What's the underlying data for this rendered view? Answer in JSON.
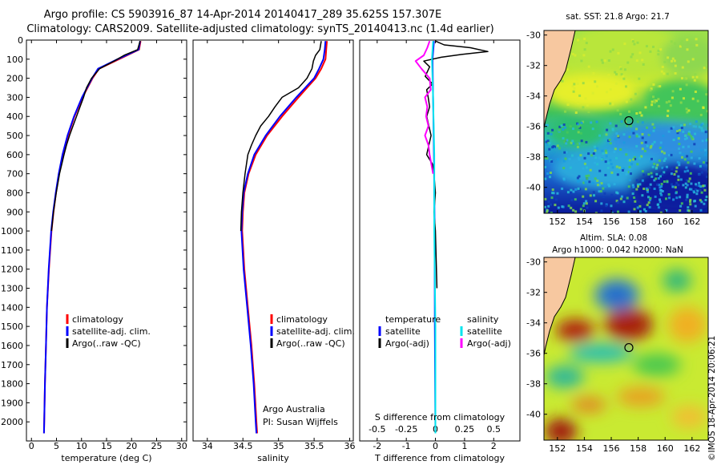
{
  "header": {
    "title_line1": "Argo profile: CS 5903916_87 14-Apr-2014 20140417_289 35.625S 157.307E",
    "title_line2": "Climatology: CARS2009. Satellite-adjusted climatology: synTS_20140413.nc (1.4d earlier)"
  },
  "colors": {
    "climatology": "#ff0000",
    "satellite": "#0000ff",
    "argo": "#000000",
    "salinity_satellite": "#00e5ee",
    "salinity_argo": "#ff00ff",
    "land": "#f7c8a0"
  },
  "chart_data": [
    {
      "id": "temperature",
      "type": "line",
      "xlabel": "temperature (deg C)",
      "ylabel": "",
      "xlim": [
        -1,
        31
      ],
      "ylim": [
        2100,
        0
      ],
      "xticks": [
        0,
        5,
        10,
        15,
        20,
        25,
        30
      ],
      "xtick_labels": [
        "0",
        "5",
        "10",
        "15",
        "20",
        "25",
        "30"
      ],
      "yticks": [
        0,
        100,
        200,
        300,
        400,
        500,
        600,
        700,
        800,
        900,
        1000,
        1100,
        1200,
        1300,
        1400,
        1500,
        1600,
        1700,
        1800,
        1900,
        2000
      ],
      "ytick_labels": [
        "0",
        "100",
        "200",
        "300",
        "400",
        "500",
        "600",
        "700",
        "800",
        "900",
        "1000",
        "1100",
        "1200",
        "1300",
        "1400",
        "1500",
        "1600",
        "1700",
        "1800",
        "1900",
        "2000"
      ],
      "legend": [
        "climatology",
        "satellite-adj. clim.",
        "Argo(..raw -QC)"
      ],
      "series": [
        {
          "name": "climatology",
          "depth": [
            5,
            50,
            100,
            150,
            200,
            300,
            400,
            500,
            600,
            700,
            800,
            900,
            1000,
            1200,
            1400,
            1600,
            1800,
            2000,
            2060
          ],
          "values": [
            21.8,
            21.5,
            17.5,
            13.5,
            12.2,
            10.2,
            8.6,
            7.3,
            6.3,
            5.5,
            4.9,
            4.4,
            4.0,
            3.5,
            3.1,
            2.9,
            2.7,
            2.55,
            2.5
          ]
        },
        {
          "name": "satellite-adj. clim.",
          "depth": [
            5,
            50,
            100,
            150,
            200,
            300,
            400,
            500,
            600,
            700,
            800,
            900,
            1000,
            1200,
            1400,
            1600,
            1800,
            2000,
            2060
          ],
          "values": [
            21.7,
            21.4,
            17.2,
            13.3,
            12.1,
            10.1,
            8.5,
            7.2,
            6.2,
            5.45,
            4.85,
            4.35,
            3.95,
            3.45,
            3.1,
            2.9,
            2.7,
            2.55,
            2.5
          ]
        },
        {
          "name": "Argo(..raw -QC)",
          "depth": [
            5,
            50,
            80,
            110,
            150,
            200,
            250,
            300,
            350,
            400,
            450,
            500,
            550,
            600,
            700,
            800,
            900,
            1000
          ],
          "values": [
            21.7,
            21.2,
            18.5,
            16.5,
            13.6,
            12.0,
            11.0,
            10.4,
            9.7,
            9.0,
            8.3,
            7.6,
            7.0,
            6.5,
            5.6,
            4.95,
            4.4,
            4.0
          ]
        }
      ]
    },
    {
      "id": "salinity",
      "type": "line",
      "xlabel": "salinity",
      "ylabel": "",
      "xlim": [
        33.8,
        36.05
      ],
      "ylim": [
        2100,
        0
      ],
      "xticks": [
        34,
        34.5,
        35,
        35.5,
        36
      ],
      "xtick_labels": [
        "34",
        "34.5",
        "35",
        "35.5",
        "36"
      ],
      "legend": [
        "climatology",
        "satellite-adj. clim.",
        "Argo(..raw -QC)"
      ],
      "annotation_line1": "Argo Australia",
      "annotation_line2": "PI: Susan Wijffels",
      "series": [
        {
          "name": "climatology",
          "depth": [
            5,
            50,
            100,
            150,
            200,
            300,
            400,
            500,
            600,
            700,
            800,
            900,
            1000,
            1200,
            1400,
            1600,
            1800,
            2000,
            2060
          ],
          "values": [
            35.68,
            35.67,
            35.66,
            35.6,
            35.52,
            35.28,
            35.05,
            34.84,
            34.68,
            34.58,
            34.52,
            34.5,
            34.49,
            34.52,
            34.57,
            34.62,
            34.66,
            34.69,
            34.7
          ]
        },
        {
          "name": "satellite-adj. clim.",
          "depth": [
            5,
            50,
            100,
            150,
            200,
            300,
            400,
            500,
            600,
            700,
            800,
            900,
            1000,
            1200,
            1400,
            1600,
            1800,
            2000,
            2060
          ],
          "values": [
            35.66,
            35.65,
            35.63,
            35.57,
            35.5,
            35.25,
            35.02,
            34.82,
            34.66,
            34.57,
            34.51,
            34.49,
            34.48,
            34.51,
            34.56,
            34.61,
            34.65,
            34.68,
            34.69
          ]
        },
        {
          "name": "Argo(..raw -QC)",
          "depth": [
            5,
            50,
            80,
            110,
            150,
            200,
            250,
            300,
            350,
            400,
            450,
            500,
            550,
            600,
            700,
            800,
            900,
            1000
          ],
          "values": [
            35.6,
            35.58,
            35.52,
            35.49,
            35.47,
            35.4,
            35.28,
            35.05,
            34.95,
            34.86,
            34.75,
            34.68,
            34.62,
            34.57,
            34.53,
            34.5,
            34.48,
            34.47
          ]
        }
      ]
    },
    {
      "id": "difference",
      "type": "line",
      "xlabel": "T difference from climatology",
      "top_label": "S difference from climatology",
      "xlim": [
        -2.6,
        2.9
      ],
      "ylim": [
        2100,
        0
      ],
      "xticks": [
        -2,
        -1,
        0,
        1,
        2
      ],
      "xtick_labels": [
        "-2",
        "-1",
        "0",
        "1",
        "2"
      ],
      "sticks": [
        -0.5,
        -0.25,
        0,
        0.25,
        0.5
      ],
      "stick_labels": [
        "-0.5",
        "-0.25",
        "0",
        "0.25",
        "0.5"
      ],
      "legend_temperature_title": "temperature",
      "legend_salinity_title": "salinity",
      "legend_temperature": [
        "satellite",
        "Argo(-adj)"
      ],
      "legend_salinity": [
        "satellite",
        "Argo(-adj)"
      ],
      "series": [
        {
          "name": "T satellite",
          "depth": [
            5,
            100,
            300,
            600,
            1000,
            1500,
            2060
          ],
          "values": [
            -0.05,
            -0.1,
            -0.08,
            -0.05,
            -0.03,
            -0.02,
            0.0
          ]
        },
        {
          "name": "T Argo(-adj)",
          "depth": [
            5,
            25,
            40,
            60,
            75,
            90,
            110,
            140,
            190,
            230,
            260,
            300,
            350,
            400,
            500,
            600,
            650,
            700,
            800,
            900,
            1000,
            1300
          ],
          "values": [
            0.0,
            0.3,
            1.2,
            1.8,
            0.9,
            0.2,
            -0.4,
            -0.2,
            -0.35,
            -0.1,
            -0.3,
            -0.25,
            -0.2,
            -0.3,
            -0.15,
            -0.3,
            -0.1,
            -0.05,
            0.0,
            -0.05,
            0.0,
            0.05
          ]
        },
        {
          "name": "S satellite",
          "depth": [
            5,
            100,
            300,
            600,
            1000,
            1500,
            2060
          ],
          "values": [
            -0.02,
            -0.03,
            -0.02,
            -0.01,
            -0.01,
            0.0,
            0.0
          ]
        },
        {
          "name": "S Argo(-adj)",
          "depth": [
            5,
            40,
            80,
            110,
            150,
            200,
            260,
            300,
            350,
            400,
            450,
            500,
            550,
            600,
            700
          ],
          "values": [
            -0.05,
            -0.07,
            -0.1,
            -0.17,
            -0.12,
            -0.05,
            -0.04,
            -0.09,
            -0.07,
            -0.08,
            -0.06,
            -0.09,
            -0.06,
            -0.05,
            -0.02
          ]
        }
      ]
    },
    {
      "id": "sst_map",
      "type": "heatmap",
      "title": "sat. SST: 21.8 Argo: 21.7",
      "xlim": [
        151,
        163.2
      ],
      "ylim": [
        -41.7,
        -29.7
      ],
      "xticks": [
        152,
        154,
        156,
        158,
        160,
        162
      ],
      "xtick_labels": [
        "152",
        "154",
        "156",
        "158",
        "160",
        "162"
      ],
      "yticks": [
        -30,
        -32,
        -34,
        -36,
        -38,
        -40
      ],
      "ytick_labels": [
        "-30",
        "-32",
        "-34",
        "-36",
        "-38",
        "-40"
      ],
      "marker": {
        "lon": 157.307,
        "lat": -35.625
      }
    },
    {
      "id": "sla_map",
      "type": "heatmap",
      "title_line1": "Altim. SLA: 0.08",
      "title_line2": "Argo h1000: 0.042 h2000: NaN",
      "xlim": [
        151,
        163.2
      ],
      "ylim": [
        -41.7,
        -29.7
      ],
      "xticks": [
        152,
        154,
        156,
        158,
        160,
        162
      ],
      "xtick_labels": [
        "152",
        "154",
        "156",
        "158",
        "160",
        "162"
      ],
      "yticks": [
        -30,
        -32,
        -34,
        -36,
        -38,
        -40
      ],
      "ytick_labels": [
        "-30",
        "-32",
        "-34",
        "-36",
        "-38",
        "-40"
      ],
      "marker": {
        "lon": 157.307,
        "lat": -35.625
      },
      "side_label": "©IMOS 18-Apr-2014 20:06:21"
    }
  ]
}
